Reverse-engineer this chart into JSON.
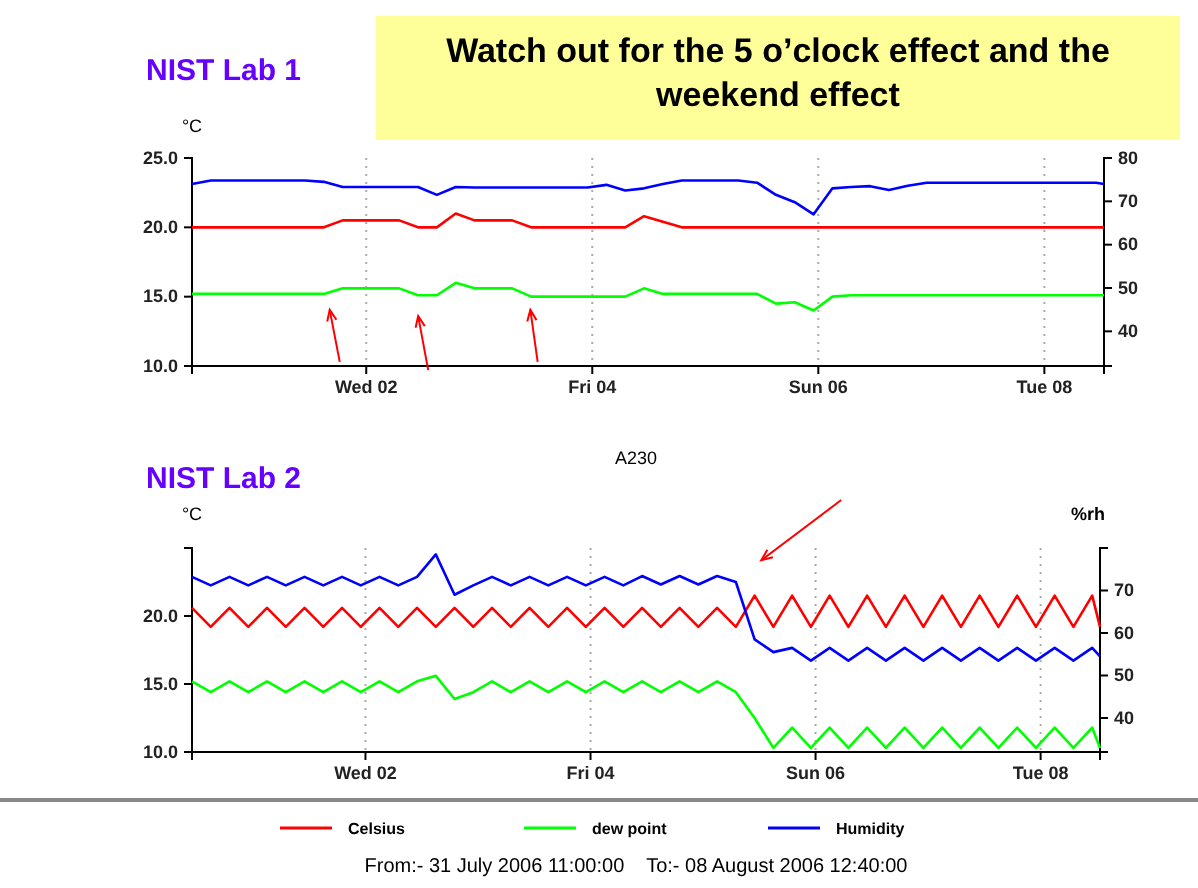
{
  "chart_data": [
    {
      "type": "line",
      "title": "NIST Lab 1",
      "annotations": [
        "Watch out for the 5 o’clock effect and the weekend effect"
      ],
      "ylabel": "°C",
      "x": [
        "2006-07-31T11:00",
        "2006-07-31T15:00",
        "2006-07-31T19:00",
        "2006-07-31T23:00",
        "2006-08-01T03:00",
        "2006-08-01T07:00",
        "2006-08-01T11:00",
        "2006-08-01T15:00",
        "2006-08-01T19:00",
        "2006-08-01T23:00",
        "2006-08-02T03:00",
        "2006-08-02T07:00",
        "2006-08-02T11:00",
        "2006-08-02T15:00",
        "2006-08-02T19:00",
        "2006-08-02T23:00",
        "2006-08-03T03:00",
        "2006-08-03T07:00",
        "2006-08-03T11:00",
        "2006-08-03T15:00",
        "2006-08-03T19:00",
        "2006-08-03T23:00",
        "2006-08-04T03:00",
        "2006-08-04T07:00",
        "2006-08-04T11:00",
        "2006-08-04T15:00",
        "2006-08-04T19:00",
        "2006-08-04T23:00",
        "2006-08-05T03:00",
        "2006-08-05T07:00",
        "2006-08-05T11:00",
        "2006-08-05T15:00",
        "2006-08-05T19:00",
        "2006-08-05T23:00",
        "2006-08-06T03:00",
        "2006-08-06T07:00",
        "2006-08-06T11:00",
        "2006-08-06T15:00",
        "2006-08-06T19:00",
        "2006-08-06T23:00",
        "2006-08-07T03:00",
        "2006-08-07T07:00",
        "2006-08-07T11:00",
        "2006-08-07T15:00",
        "2006-08-07T19:00",
        "2006-08-07T23:00",
        "2006-08-08T03:00",
        "2006-08-08T07:00",
        "2006-08-08T11:00",
        "2006-08-08T12:40"
      ],
      "xlim": [
        "2006-07-31T11:00",
        "2006-08-08T12:40"
      ],
      "xticks": [
        {
          "value": "2006-08-02T00:00",
          "label": "Wed 02"
        },
        {
          "value": "2006-08-04T00:00",
          "label": "Fri 04"
        },
        {
          "value": "2006-08-06T00:00",
          "label": "Sun 06"
        },
        {
          "value": "2006-08-08T00:00",
          "label": "Tue 08"
        }
      ],
      "ylim": [
        10,
        25
      ],
      "yticks": [
        {
          "value": 10,
          "label": "10.0"
        },
        {
          "value": 15,
          "label": "15.0"
        },
        {
          "value": 20,
          "label": "20.0"
        },
        {
          "value": 25,
          "label": "25.0"
        }
      ],
      "y2lim": [
        32,
        80
      ],
      "y2ticks": [
        40,
        50,
        60,
        70,
        80
      ],
      "grid": "x",
      "series": [
        {
          "color": "#ff0000",
          "values": [
            20.0,
            20.0,
            20.0,
            20.0,
            20.0,
            20.0,
            20.0,
            20.0,
            20.5,
            20.5,
            20.5,
            20.5,
            20.0,
            20.0,
            21.0,
            20.5,
            20.5,
            20.5,
            20.0,
            20.0,
            20.0,
            20.0,
            20.0,
            20.0,
            20.8,
            20.4,
            20.0,
            20.0,
            20.0,
            20.0,
            20.0,
            20.0,
            20.0,
            20.0,
            20.0,
            20.0,
            20.0,
            20.0,
            20.0,
            20.0,
            20.0,
            20.0,
            20.0,
            20.0,
            20.0,
            20.0,
            20.0,
            20.0,
            20.0,
            20.0
          ]
        },
        {
          "color": "#00ff00",
          "values": [
            15.2,
            15.2,
            15.2,
            15.2,
            15.2,
            15.2,
            15.2,
            15.2,
            15.6,
            15.6,
            15.6,
            15.6,
            15.1,
            15.1,
            16.0,
            15.6,
            15.6,
            15.6,
            15.0,
            15.0,
            15.0,
            15.0,
            15.0,
            15.0,
            15.6,
            15.2,
            15.2,
            15.2,
            15.2,
            15.2,
            15.2,
            14.5,
            14.6,
            14.0,
            15.0,
            15.1,
            15.1,
            15.1,
            15.1,
            15.1,
            15.1,
            15.1,
            15.1,
            15.1,
            15.1,
            15.1,
            15.1,
            15.1,
            15.1,
            15.1
          ]
        },
        {
          "color": "#0000ff",
          "axis": "y2",
          "values": [
            74.0,
            74.8,
            74.8,
            74.8,
            74.8,
            74.8,
            74.8,
            74.5,
            73.3,
            73.3,
            73.3,
            73.3,
            73.3,
            71.5,
            73.3,
            73.2,
            73.2,
            73.2,
            73.2,
            73.2,
            73.2,
            73.2,
            73.8,
            72.5,
            73.0,
            74.0,
            74.8,
            74.8,
            74.8,
            74.8,
            74.3,
            71.5,
            69.8,
            67.0,
            73.0,
            73.3,
            73.5,
            72.6,
            73.6,
            74.3,
            74.3,
            74.3,
            74.3,
            74.3,
            74.3,
            74.3,
            74.3,
            74.3,
            74.3,
            74.0
          ]
        }
      ]
    },
    {
      "type": "line",
      "title": "NIST Lab 2",
      "subtitle": "A230",
      "annotations": [
        "From:- 31 July 2006 11:00:00    To:- 08 August 2006 12:40:00"
      ],
      "ylabel": "°C",
      "y2label": "%rh",
      "x": [
        "2006-07-31T11:00",
        "2006-07-31T15:00",
        "2006-07-31T19:00",
        "2006-07-31T23:00",
        "2006-08-01T03:00",
        "2006-08-01T07:00",
        "2006-08-01T11:00",
        "2006-08-01T15:00",
        "2006-08-01T19:00",
        "2006-08-01T23:00",
        "2006-08-02T03:00",
        "2006-08-02T07:00",
        "2006-08-02T11:00",
        "2006-08-02T15:00",
        "2006-08-02T19:00",
        "2006-08-02T23:00",
        "2006-08-03T03:00",
        "2006-08-03T07:00",
        "2006-08-03T11:00",
        "2006-08-03T15:00",
        "2006-08-03T19:00",
        "2006-08-03T23:00",
        "2006-08-04T03:00",
        "2006-08-04T07:00",
        "2006-08-04T11:00",
        "2006-08-04T15:00",
        "2006-08-04T19:00",
        "2006-08-04T23:00",
        "2006-08-05T03:00",
        "2006-08-05T07:00",
        "2006-08-05T11:00",
        "2006-08-05T15:00",
        "2006-08-05T19:00",
        "2006-08-05T23:00",
        "2006-08-06T03:00",
        "2006-08-06T07:00",
        "2006-08-06T11:00",
        "2006-08-06T15:00",
        "2006-08-06T19:00",
        "2006-08-06T23:00",
        "2006-08-07T03:00",
        "2006-08-07T07:00",
        "2006-08-07T11:00",
        "2006-08-07T15:00",
        "2006-08-07T19:00",
        "2006-08-07T23:00",
        "2006-08-08T03:00",
        "2006-08-08T07:00",
        "2006-08-08T11:00",
        "2006-08-08T12:40"
      ],
      "xlim": [
        "2006-07-31T11:00",
        "2006-08-08T12:40"
      ],
      "xticks": [
        {
          "value": "2006-08-02T00:00",
          "label": "Wed 02"
        },
        {
          "value": "2006-08-04T00:00",
          "label": "Fri 04"
        },
        {
          "value": "2006-08-06T00:00",
          "label": "Sun 06"
        },
        {
          "value": "2006-08-08T00:00",
          "label": "Tue 08"
        }
      ],
      "ylim": [
        10,
        25
      ],
      "yticks": [
        {
          "value": 10,
          "label": "10.0"
        },
        {
          "value": 15,
          "label": "15.0"
        },
        {
          "value": 20,
          "label": "20.0"
        },
        {
          "value": 25,
          "label": null
        }
      ],
      "y2lim": [
        32,
        80
      ],
      "y2ticks": [
        40,
        50,
        60,
        70
      ],
      "grid": "x",
      "legend": "bottom",
      "series": [
        {
          "name": "Celsius",
          "color": "#ff0000",
          "values": [
            20.6,
            19.2,
            20.6,
            19.2,
            20.6,
            19.2,
            20.6,
            19.2,
            20.6,
            19.2,
            20.6,
            19.2,
            20.6,
            19.2,
            20.6,
            19.2,
            20.6,
            19.2,
            20.6,
            19.2,
            20.6,
            19.2,
            20.6,
            19.2,
            20.6,
            19.2,
            20.6,
            19.2,
            20.6,
            19.2,
            21.5,
            19.2,
            21.5,
            19.2,
            21.5,
            19.2,
            21.5,
            19.2,
            21.5,
            19.2,
            21.5,
            19.2,
            21.5,
            19.2,
            21.5,
            19.2,
            21.5,
            19.2,
            21.5,
            19.2
          ]
        },
        {
          "name": "dew point",
          "color": "#00ff00",
          "values": [
            15.2,
            14.4,
            15.2,
            14.4,
            15.2,
            14.4,
            15.2,
            14.4,
            15.2,
            14.4,
            15.2,
            14.4,
            15.2,
            15.6,
            13.9,
            14.4,
            15.2,
            14.4,
            15.2,
            14.4,
            15.2,
            14.4,
            15.2,
            14.4,
            15.2,
            14.4,
            15.2,
            14.4,
            15.2,
            14.4,
            12.5,
            10.3,
            11.8,
            10.3,
            11.8,
            10.3,
            11.8,
            10.3,
            11.8,
            10.3,
            11.8,
            10.3,
            11.8,
            10.3,
            11.8,
            10.3,
            11.8,
            10.3,
            11.8,
            10.3
          ]
        },
        {
          "name": "Humidity",
          "color": "#0000ff",
          "axis": "y2",
          "values": [
            73.2,
            71.2,
            73.2,
            71.2,
            73.2,
            71.2,
            73.2,
            71.2,
            73.2,
            71.2,
            73.2,
            71.2,
            73.2,
            78.5,
            69.0,
            71.2,
            73.2,
            71.2,
            73.2,
            71.2,
            73.2,
            71.2,
            73.2,
            71.2,
            73.4,
            71.4,
            73.4,
            71.4,
            73.4,
            72.0,
            58.5,
            55.5,
            56.5,
            53.5,
            56.5,
            53.5,
            56.5,
            53.5,
            56.5,
            53.5,
            56.5,
            53.5,
            56.5,
            53.5,
            56.5,
            53.5,
            56.5,
            53.5,
            56.5,
            54.5
          ]
        }
      ]
    }
  ]
}
